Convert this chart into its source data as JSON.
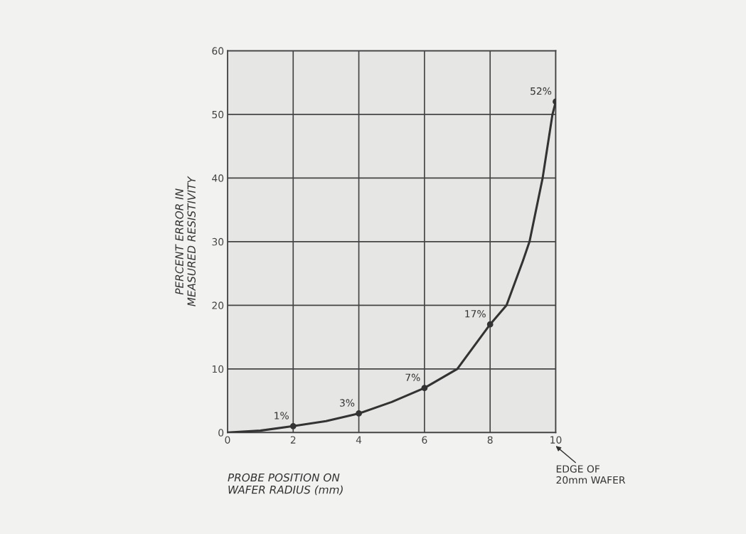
{
  "chart_data": {
    "type": "line",
    "xlabel": "PROBE POSITION ON\nWAFER RADIUS (mm)",
    "ylabel": "PERCENT ERROR IN\nMEASURED RESISTIVITY",
    "xlim": [
      0,
      10
    ],
    "ylim": [
      0,
      60
    ],
    "xticks": [
      0,
      2,
      4,
      6,
      8,
      10
    ],
    "yticks": [
      0,
      10,
      20,
      30,
      40,
      50,
      60
    ],
    "grid": true,
    "series": [
      {
        "color": "#333333",
        "marker": "none",
        "x": [
          0,
          1,
          2,
          3,
          4,
          5,
          6,
          7,
          8,
          8.5,
          9,
          9.2,
          9.6,
          9.9,
          10
        ],
        "values": [
          0,
          0.3,
          1,
          1.8,
          3,
          4.8,
          7,
          10,
          17,
          20,
          27,
          30,
          40,
          50,
          52
        ]
      },
      {
        "type": "scatter",
        "color": "#333333",
        "marker": "circle",
        "x": [
          2,
          4,
          6,
          8,
          10
        ],
        "values": [
          1,
          3,
          7,
          17,
          52
        ],
        "value_labels": [
          "1%",
          "3%",
          "7%",
          "17%",
          "52%"
        ]
      }
    ],
    "annotations": [
      "EDGE OF\n20mm WAFER"
    ]
  }
}
